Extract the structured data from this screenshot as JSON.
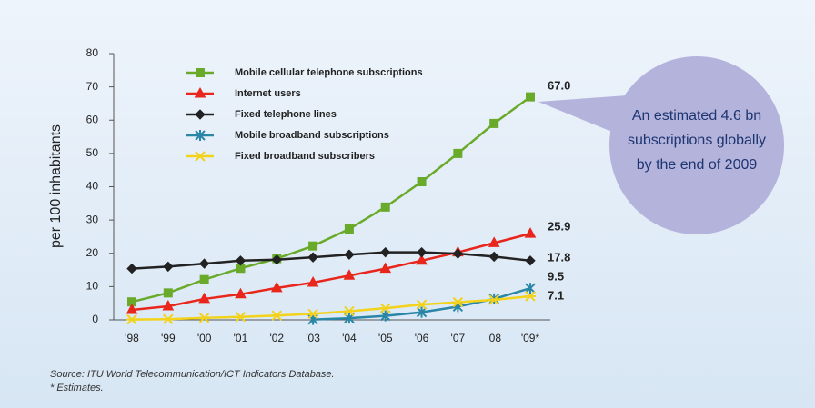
{
  "chart_data": {
    "type": "line",
    "ylabel": "per 100 inhabitants",
    "categories": [
      "'98",
      "'99",
      "'00",
      "'01",
      "'02",
      "'03",
      "'04",
      "'05",
      "'06",
      "'07",
      "'08",
      "'09*"
    ],
    "ylim": [
      0,
      80
    ],
    "yticks": [
      0,
      10,
      20,
      30,
      40,
      50,
      60,
      70,
      80
    ],
    "series": [
      {
        "name": "Mobile cellular telephone subscriptions",
        "color": "#6aaa2a",
        "marker": "square",
        "values": [
          5.4,
          8.1,
          12.1,
          15.5,
          18.4,
          22.2,
          27.3,
          33.9,
          41.5,
          50.0,
          59.0,
          67.0
        ],
        "value_labels": [
          null,
          null,
          null,
          null,
          null,
          null,
          null,
          null,
          null,
          null,
          null,
          "67.0"
        ]
      },
      {
        "name": "Internet users",
        "color": "#e8261c",
        "marker": "triangle",
        "values": [
          3.0,
          4.1,
          6.3,
          7.7,
          9.6,
          11.2,
          13.3,
          15.4,
          17.8,
          20.3,
          23.1,
          25.9
        ],
        "value_labels": [
          null,
          null,
          null,
          null,
          null,
          null,
          null,
          null,
          null,
          null,
          null,
          "25.9"
        ]
      },
      {
        "name": "Fixed telephone lines",
        "color": "#222222",
        "marker": "diamond",
        "values": [
          15.4,
          16.0,
          16.9,
          17.8,
          18.1,
          18.8,
          19.6,
          20.3,
          20.3,
          19.9,
          19.0,
          17.8
        ],
        "value_labels": [
          null,
          null,
          null,
          null,
          null,
          null,
          null,
          null,
          null,
          null,
          null,
          "17.8"
        ]
      },
      {
        "name": "Mobile broadband subscriptions",
        "color": "#2a86a6",
        "marker": "asterisk",
        "values": [
          null,
          null,
          null,
          null,
          null,
          0.1,
          0.5,
          1.2,
          2.3,
          4.0,
          6.3,
          9.5
        ],
        "value_labels": [
          null,
          null,
          null,
          null,
          null,
          null,
          null,
          null,
          null,
          null,
          null,
          "9.5"
        ]
      },
      {
        "name": "Fixed broadband subscribers",
        "color": "#f2d21a",
        "marker": "cross",
        "values": [
          0.1,
          0.2,
          0.6,
          0.9,
          1.3,
          1.8,
          2.6,
          3.5,
          4.6,
          5.3,
          6.0,
          7.1
        ],
        "value_labels": [
          null,
          null,
          null,
          null,
          null,
          null,
          null,
          null,
          null,
          null,
          null,
          "7.1"
        ]
      }
    ],
    "annotation": [
      "An estimated 4.6 bn",
      "subscriptions globally",
      "by the end of 2009"
    ],
    "source": "Source: ITU World Telecommunication/ICT Indicators Database.",
    "note": "* Estimates."
  }
}
